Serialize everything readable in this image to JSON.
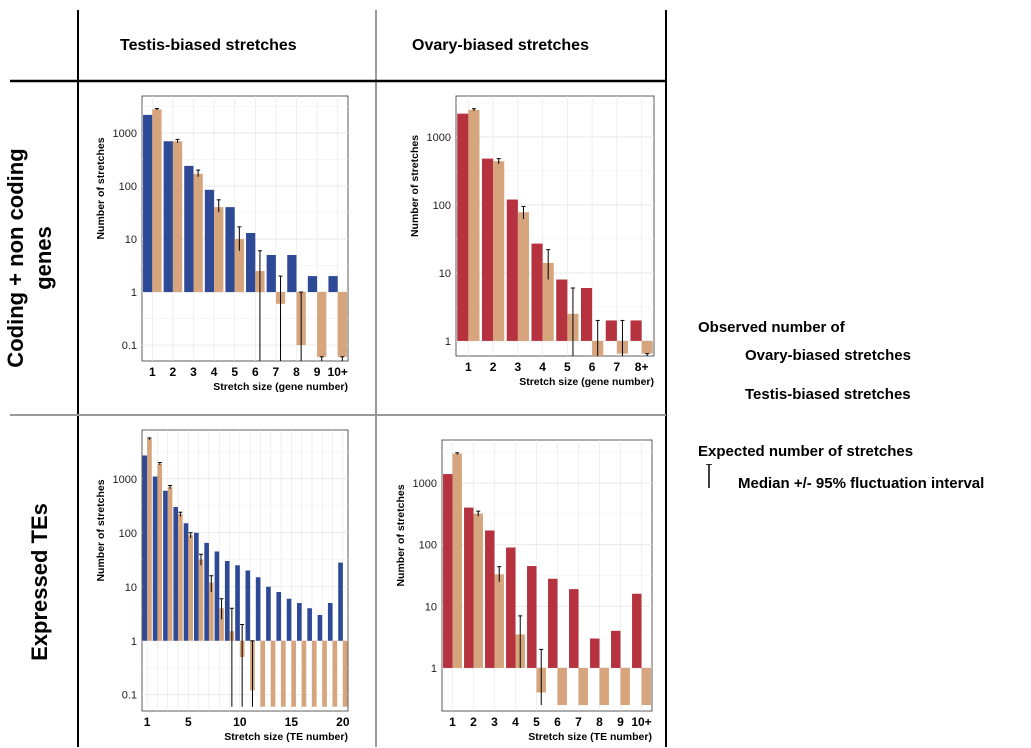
{
  "column_headers": [
    "Testis-biased stretches",
    "Ovary-biased stretches"
  ],
  "row_headers": [
    "Coding + non coding genes",
    "Expressed TEs"
  ],
  "legend": {
    "observed_title": "Observed number of",
    "observed_items": [
      {
        "label": "Ovary-biased stretches",
        "color": "#b5323e"
      },
      {
        "label": "Testis-biased stretches",
        "color": "#2e4a96"
      }
    ],
    "expected_title": "Expected number of stretches",
    "expected_item": {
      "label": "Median +/- 95% fluctuation interval",
      "color": "#d6a57d"
    }
  },
  "colors": {
    "observed_ovary": "#b5323e",
    "observed_testis": "#2e4a96",
    "expected": "#d6a57d",
    "grid": "#e6e6e6"
  },
  "chart_data": [
    {
      "type": "bar",
      "panel": "Testis-biased stretches / Coding + non coding genes",
      "xlabel": "Stretch size (gene number)",
      "ylabel": "Number of stretches",
      "yscale": "log",
      "ylim": [
        0.05,
        5000
      ],
      "yticks": [
        "0.1",
        "1",
        "10",
        "100",
        "1000"
      ],
      "categories": [
        "1",
        "2",
        "3",
        "4",
        "5",
        "6",
        "7",
        "8",
        "9",
        "10+"
      ],
      "series": [
        {
          "name": "Observed",
          "values": [
            2200,
            700,
            240,
            85,
            40,
            13,
            5,
            5,
            2,
            2
          ]
        },
        {
          "name": "Expected",
          "values": [
            2800,
            700,
            170,
            40,
            10,
            2.5,
            0.6,
            0.1,
            0.06,
            0.06
          ],
          "err_low": [
            2700,
            650,
            150,
            32,
            6,
            0.05,
            0.05,
            0.05,
            0.05,
            0.05
          ],
          "err_high": [
            2900,
            760,
            200,
            55,
            17,
            6,
            2,
            1,
            0.06,
            0.06
          ]
        }
      ],
      "baseline": 1
    },
    {
      "type": "bar",
      "panel": "Ovary-biased stretches / Coding + non coding genes",
      "xlabel": "Stretch size (gene number)",
      "ylabel": "Number of stretches",
      "yscale": "log",
      "ylim": [
        0.6,
        4000
      ],
      "yticks": [
        "1",
        "10",
        "100",
        "1000"
      ],
      "categories": [
        "1",
        "2",
        "3",
        "4",
        "5",
        "6",
        "7",
        "8+"
      ],
      "series": [
        {
          "name": "Observed",
          "values": [
            2200,
            480,
            120,
            27,
            8,
            6,
            2,
            2
          ]
        },
        {
          "name": "Expected",
          "values": [
            2500,
            440,
            78,
            14,
            2.5,
            0.5,
            0.65,
            0.65
          ],
          "err_low": [
            2400,
            400,
            62,
            8,
            0.6,
            0.6,
            0.6,
            0.6
          ],
          "err_high": [
            2600,
            480,
            95,
            22,
            6,
            2,
            2,
            0.65
          ]
        }
      ],
      "baseline": 1
    },
    {
      "type": "bar",
      "panel": "Testis-biased stretches / Expressed TEs",
      "xlabel": "Stretch size (TE number)",
      "ylabel": "Number of stretches",
      "yscale": "log",
      "ylim": [
        0.05,
        8000
      ],
      "yticks": [
        "0.1",
        "1",
        "10",
        "100",
        "1000"
      ],
      "x_tick_labels": [
        "1",
        "5",
        "10",
        "15",
        "20"
      ],
      "categories": [
        "1",
        "2",
        "3",
        "4",
        "5",
        "6",
        "7",
        "8",
        "9",
        "10",
        "11",
        "12",
        "13",
        "14",
        "15",
        "16",
        "17",
        "18",
        "19",
        "20"
      ],
      "series": [
        {
          "name": "Observed",
          "values": [
            2700,
            1100,
            600,
            300,
            150,
            100,
            65,
            45,
            30,
            25,
            20,
            15,
            10,
            8,
            6,
            5,
            4,
            3,
            5,
            28
          ]
        },
        {
          "name": "Expected",
          "values": [
            5500,
            1900,
            700,
            220,
            90,
            32,
            12,
            4,
            1.5,
            0.5,
            0.12,
            0.06,
            0.06,
            0.06,
            0.06,
            0.06,
            0.06,
            0.06,
            0.06,
            0.06
          ],
          "err_low": [
            5300,
            1800,
            650,
            200,
            80,
            25,
            8,
            2.5,
            0.06,
            0.06,
            0.06,
            0.06,
            0.06,
            0.06,
            0.06,
            0.06,
            0.06,
            0.06,
            0.06,
            0.06
          ],
          "err_high": [
            5700,
            2000,
            750,
            240,
            100,
            40,
            16,
            6,
            4,
            2,
            1,
            0.06,
            0.06,
            0.06,
            0.06,
            0.06,
            0.06,
            0.06,
            0.06,
            0.06
          ]
        }
      ],
      "baseline": 1
    },
    {
      "type": "bar",
      "panel": "Ovary-biased stretches / Expressed TEs",
      "xlabel": "Stretch size (TE number)",
      "ylabel": "Number of stretches",
      "yscale": "log",
      "ylim": [
        0.2,
        5000
      ],
      "yticks": [
        "1",
        "10",
        "100",
        "1000"
      ],
      "categories": [
        "1",
        "2",
        "3",
        "4",
        "5",
        "6",
        "7",
        "8",
        "9",
        "10+"
      ],
      "series": [
        {
          "name": "Observed",
          "values": [
            1400,
            400,
            170,
            90,
            45,
            28,
            19,
            3,
            4,
            16
          ]
        },
        {
          "name": "Expected",
          "values": [
            3000,
            320,
            33,
            3.5,
            0.4,
            0.25,
            0.25,
            0.25,
            0.25,
            0.25
          ],
          "err_low": [
            2900,
            290,
            25,
            1,
            0.25,
            0.25,
            0.25,
            0.25,
            0.25,
            0.25
          ],
          "err_high": [
            3100,
            350,
            44,
            7,
            2,
            0.25,
            0.25,
            0.25,
            0.25,
            0.25
          ]
        }
      ],
      "baseline": 1
    }
  ]
}
